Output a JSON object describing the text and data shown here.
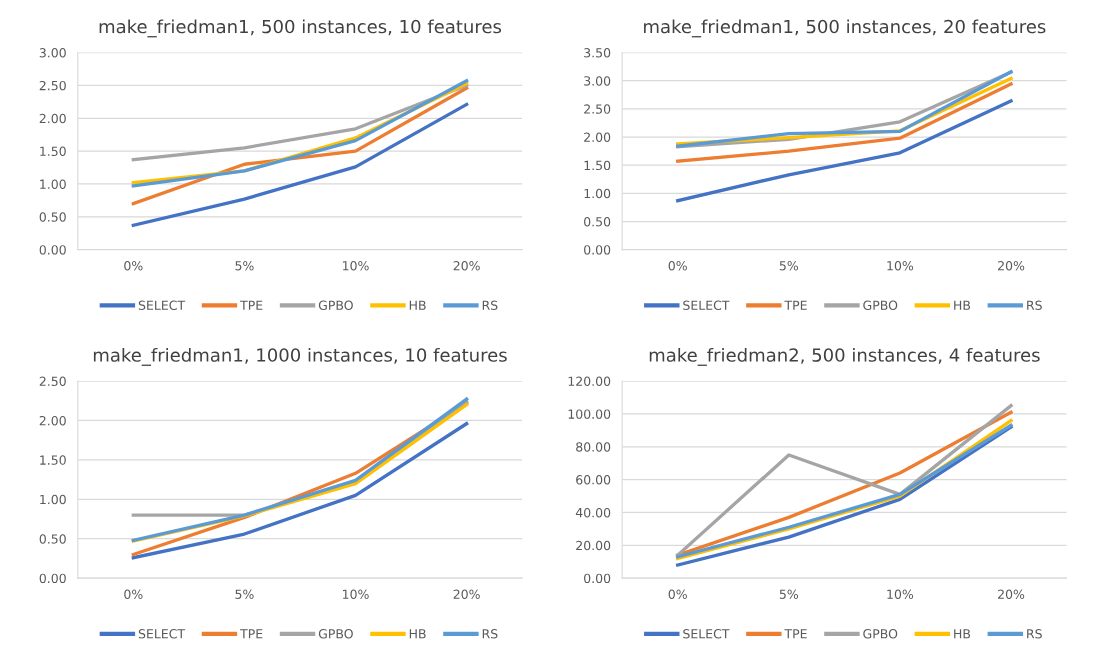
{
  "chart_data": [
    {
      "type": "line",
      "title": "make_friedman1, 500 instances, 10 features",
      "categories": [
        "0%",
        "5%",
        "10%",
        "20%"
      ],
      "ylim": [
        0,
        3
      ],
      "yticks": [
        {
          "value": 0,
          "label": "0.00"
        },
        {
          "value": 0.5,
          "label": "0.50"
        },
        {
          "value": 1,
          "label": "1.00"
        },
        {
          "value": 1.5,
          "label": "1.50"
        },
        {
          "value": 2,
          "label": "2.00"
        },
        {
          "value": 2.5,
          "label": "2.50"
        },
        {
          "value": 3,
          "label": "3.00"
        }
      ],
      "grid": "y",
      "legend": "bottom",
      "marker": "none",
      "line_style": "solid",
      "series": [
        {
          "name": "SELECT",
          "color": "#4472c4",
          "values": [
            0.37,
            0.77,
            1.26,
            2.21
          ]
        },
        {
          "name": "TPE",
          "color": "#ed7d31",
          "values": [
            0.7,
            1.3,
            1.5,
            2.46
          ]
        },
        {
          "name": "GPBO",
          "color": "#a5a5a5",
          "values": [
            1.37,
            1.55,
            1.84,
            2.5
          ]
        },
        {
          "name": "HB",
          "color": "#ffc000",
          "values": [
            1.02,
            1.2,
            1.7,
            2.53
          ]
        },
        {
          "name": "RS",
          "color": "#5b9bd5",
          "values": [
            0.97,
            1.2,
            1.66,
            2.57
          ]
        }
      ]
    },
    {
      "type": "line",
      "title": "make_friedman1, 500 instances, 20 features",
      "categories": [
        "0%",
        "5%",
        "10%",
        "20%"
      ],
      "ylim": [
        0,
        3.5
      ],
      "yticks": [
        {
          "value": 0,
          "label": "0.00"
        },
        {
          "value": 0.5,
          "label": "0.50"
        },
        {
          "value": 1,
          "label": "1.00"
        },
        {
          "value": 1.5,
          "label": "1.50"
        },
        {
          "value": 2,
          "label": "2.00"
        },
        {
          "value": 2.5,
          "label": "2.50"
        },
        {
          "value": 3,
          "label": "3.00"
        },
        {
          "value": 3.5,
          "label": "3.50"
        }
      ],
      "grid": "y",
      "legend": "bottom",
      "marker": "none",
      "line_style": "solid",
      "series": [
        {
          "name": "SELECT",
          "color": "#4472c4",
          "values": [
            0.87,
            1.33,
            1.72,
            2.64
          ]
        },
        {
          "name": "TPE",
          "color": "#ed7d31",
          "values": [
            1.57,
            1.75,
            1.98,
            2.94
          ]
        },
        {
          "name": "GPBO",
          "color": "#a5a5a5",
          "values": [
            1.83,
            1.96,
            2.27,
            3.15
          ]
        },
        {
          "name": "HB",
          "color": "#ffc000",
          "values": [
            1.88,
            1.99,
            2.11,
            3.04
          ]
        },
        {
          "name": "RS",
          "color": "#5b9bd5",
          "values": [
            1.84,
            2.06,
            2.1,
            3.16
          ]
        }
      ]
    },
    {
      "type": "line",
      "title": "make_friedman1, 1000 instances, 10 features",
      "categories": [
        "0%",
        "5%",
        "10%",
        "20%"
      ],
      "ylim": [
        0,
        2.5
      ],
      "yticks": [
        {
          "value": 0,
          "label": "0.00"
        },
        {
          "value": 0.5,
          "label": "0.50"
        },
        {
          "value": 1,
          "label": "1.00"
        },
        {
          "value": 1.5,
          "label": "1.50"
        },
        {
          "value": 2,
          "label": "2.00"
        },
        {
          "value": 2.5,
          "label": "2.50"
        }
      ],
      "grid": "y",
      "legend": "bottom",
      "marker": "none",
      "line_style": "solid",
      "series": [
        {
          "name": "SELECT",
          "color": "#4472c4",
          "values": [
            0.26,
            0.56,
            1.05,
            1.96
          ]
        },
        {
          "name": "TPE",
          "color": "#ed7d31",
          "values": [
            0.3,
            0.77,
            1.33,
            2.22
          ]
        },
        {
          "name": "GPBO",
          "color": "#a5a5a5",
          "values": [
            0.8,
            0.8,
            1.22,
            2.24
          ]
        },
        {
          "name": "HB",
          "color": "#ffc000",
          "values": [
            0.47,
            0.79,
            1.2,
            2.2
          ]
        },
        {
          "name": "RS",
          "color": "#5b9bd5",
          "values": [
            0.48,
            0.8,
            1.24,
            2.27
          ]
        }
      ]
    },
    {
      "type": "line",
      "title": "make_friedman2, 500 instances, 4 features",
      "categories": [
        "0%",
        "5%",
        "10%",
        "20%"
      ],
      "ylim": [
        0,
        120
      ],
      "yticks": [
        {
          "value": 0,
          "label": "0.00"
        },
        {
          "value": 20,
          "label": "20.00"
        },
        {
          "value": 40,
          "label": "40.00"
        },
        {
          "value": 60,
          "label": "60.00"
        },
        {
          "value": 80,
          "label": "80.00"
        },
        {
          "value": 100,
          "label": "100.00"
        },
        {
          "value": 120,
          "label": "120.00"
        }
      ],
      "grid": "y",
      "legend": "bottom",
      "marker": "none",
      "line_style": "solid",
      "series": [
        {
          "name": "SELECT",
          "color": "#4472c4",
          "values": [
            8,
            25,
            48,
            92
          ]
        },
        {
          "name": "TPE",
          "color": "#ed7d31",
          "values": [
            14,
            37,
            64,
            101
          ]
        },
        {
          "name": "GPBO",
          "color": "#a5a5a5",
          "values": [
            14,
            75,
            51,
            105
          ]
        },
        {
          "name": "HB",
          "color": "#ffc000",
          "values": [
            12,
            30,
            50,
            96
          ]
        },
        {
          "name": "RS",
          "color": "#5b9bd5",
          "values": [
            13,
            31,
            51,
            93
          ]
        }
      ]
    }
  ]
}
